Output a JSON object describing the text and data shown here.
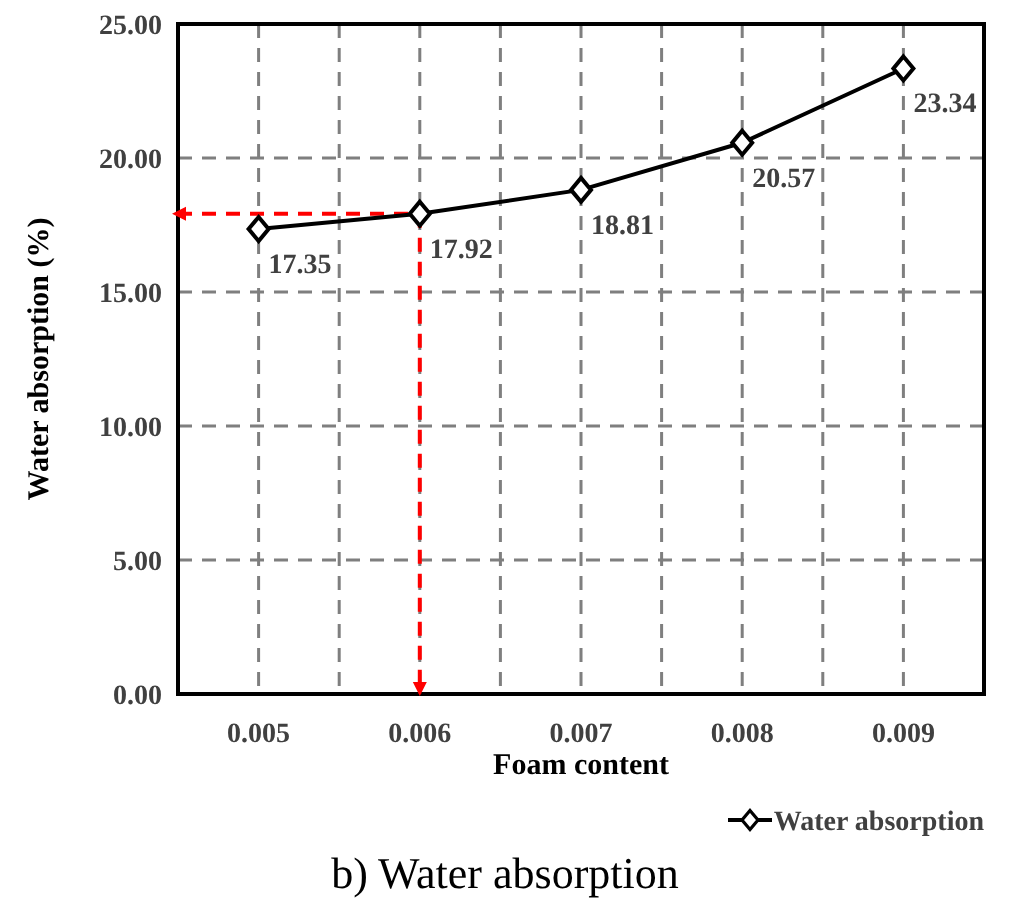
{
  "chart_data": {
    "type": "line",
    "title": "b) Water absorption",
    "xlabel": "Foam  content",
    "ylabel": "Water  absorption  (%)",
    "x": [
      0.005,
      0.006,
      0.007,
      0.008,
      0.009
    ],
    "series": [
      {
        "name": "Water absorption",
        "color": "#000000",
        "values": [
          17.35,
          17.92,
          18.81,
          20.57,
          23.34
        ]
      }
    ],
    "xlim": [
      0.0045,
      0.0095
    ],
    "xticks": [
      {
        "value": 0.0055,
        "label": null
      },
      0.005,
      {
        "value": 0.0065,
        "label": null
      },
      0.006,
      {
        "value": 0.0075,
        "label": null
      },
      0.007,
      {
        "value": 0.0085,
        "label": null
      },
      0.008,
      {
        "value": 0.0095,
        "label": null
      },
      0.009
    ],
    "ylim": [
      0,
      25
    ],
    "yticks": [
      {
        "value": 0,
        "label": "0.00"
      },
      {
        "value": 5,
        "label": "5.00"
      },
      {
        "value": 10,
        "label": "10.00"
      },
      {
        "value": 15,
        "label": "15.00"
      },
      {
        "value": 20,
        "label": "20.00"
      },
      {
        "value": 25,
        "label": "25.00"
      }
    ],
    "grid": true,
    "marker": "diamond",
    "line_style": "solid",
    "data_labels": true,
    "legend": "bottom right",
    "ref_lines": [
      {
        "axis": "x",
        "value": 0.006,
        "color": "#ff0000",
        "line_style": "dashed"
      },
      {
        "axis": "y",
        "value": 17.92,
        "color": "#ff0000",
        "line_style": "dashed"
      }
    ]
  }
}
